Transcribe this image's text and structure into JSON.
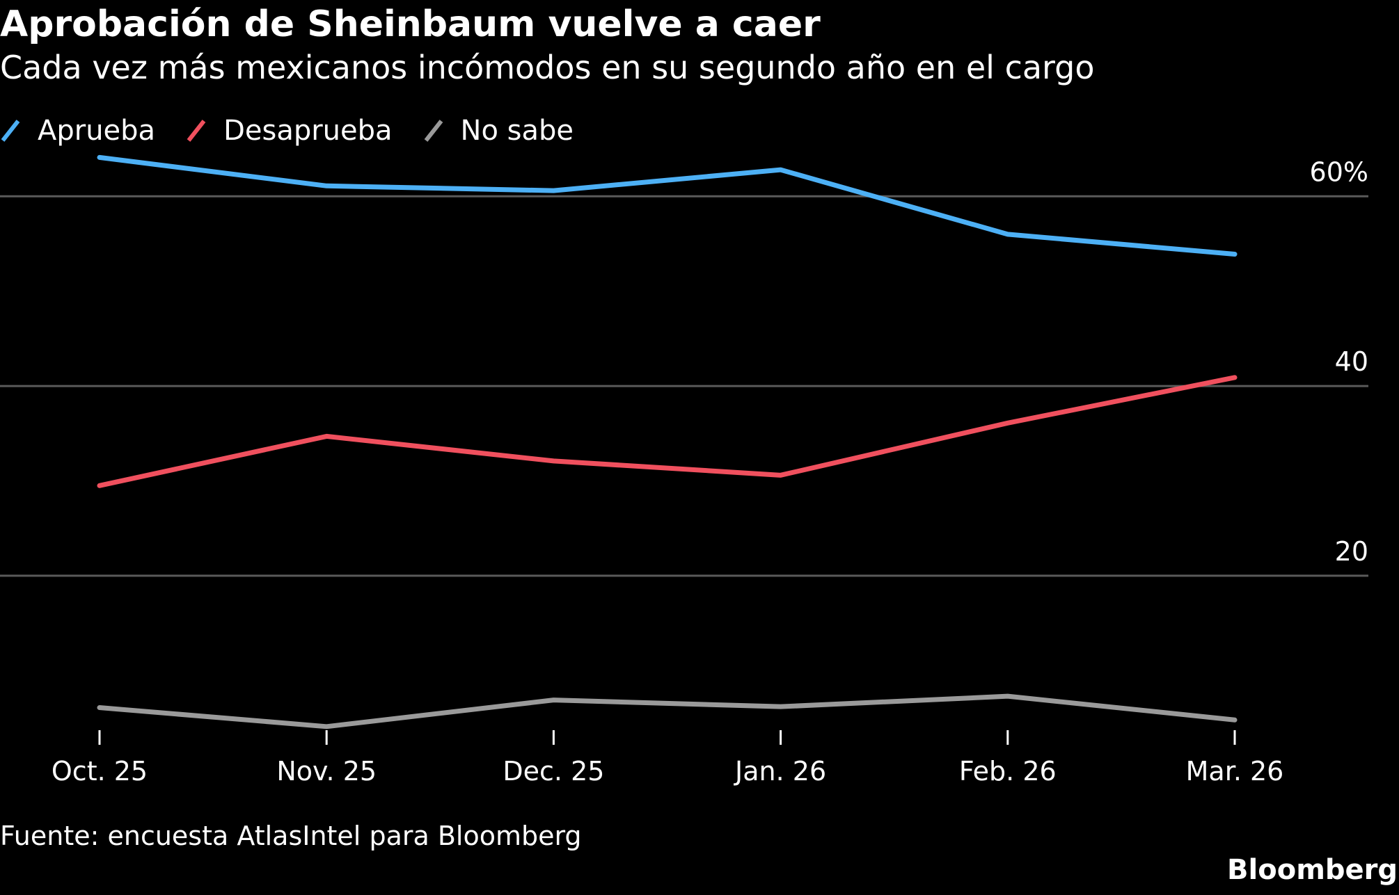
{
  "header": {
    "title": "Aprobación de Sheinbaum vuelve a caer",
    "subtitle": "Cada vez más mexicanos incómodos en su segundo año en el cargo"
  },
  "footer": {
    "source": "Fuente: encuesta AtlasIntel para Bloomberg",
    "brand": "Bloomberg"
  },
  "chart_data": {
    "type": "line",
    "categories": [
      "Oct. 25",
      "Nov. 25",
      "Dec. 25",
      "Jan. 26",
      "Feb. 26",
      "Mar. 26"
    ],
    "ylim": [
      3.5,
      67.5
    ],
    "yticks": [
      20,
      40,
      60
    ],
    "ytick_labels": [
      "20",
      "40",
      "60%"
    ],
    "grid": true,
    "legend_position": "top-left",
    "series": [
      {
        "name": "Aprueba",
        "color": "#4db0f5",
        "values": [
          64.1,
          61.1,
          60.6,
          62.8,
          56.0,
          53.9
        ]
      },
      {
        "name": "Desaprueba",
        "color": "#f0505e",
        "values": [
          29.5,
          34.7,
          32.1,
          30.6,
          36.1,
          40.9
        ]
      },
      {
        "name": "No sabe",
        "color": "#9a9a9a",
        "values": [
          6.1,
          4.1,
          6.9,
          6.2,
          7.3,
          4.8
        ]
      }
    ]
  }
}
